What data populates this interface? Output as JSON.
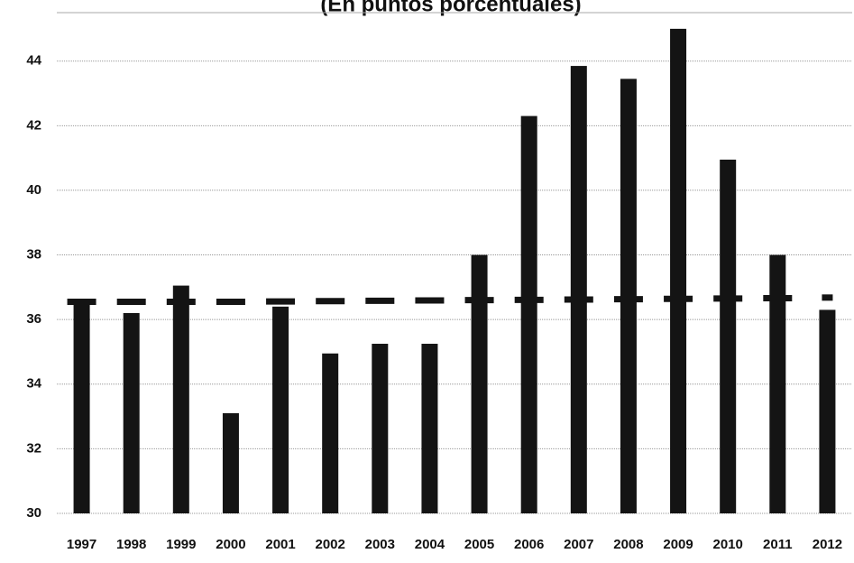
{
  "chart_data": {
    "type": "bar",
    "title": "(En puntos porcentuales)",
    "categories": [
      "1997",
      "1998",
      "1999",
      "2000",
      "2001",
      "2002",
      "2003",
      "2004",
      "2005",
      "2006",
      "2007",
      "2008",
      "2009",
      "2010",
      "2011",
      "2012"
    ],
    "series": [
      {
        "color": "#141414",
        "values": [
          36.5,
          36.2,
          37.05,
          33.1,
          36.4,
          34.95,
          35.25,
          35.25,
          38.0,
          42.3,
          43.85,
          43.45,
          45.0,
          40.95,
          38.0,
          36.3
        ]
      },
      {
        "color": "#141414",
        "style": "dashed",
        "values": [
          36.55,
          36.55,
          36.55,
          36.55,
          36.56,
          36.57,
          36.58,
          36.59,
          36.6,
          36.61,
          36.62,
          36.63,
          36.64,
          36.65,
          36.66,
          36.68
        ]
      }
    ],
    "ylim": [
      30,
      45.5
    ],
    "yticks": [
      30,
      32,
      34,
      36,
      38,
      40,
      42,
      44
    ],
    "grid": true
  }
}
